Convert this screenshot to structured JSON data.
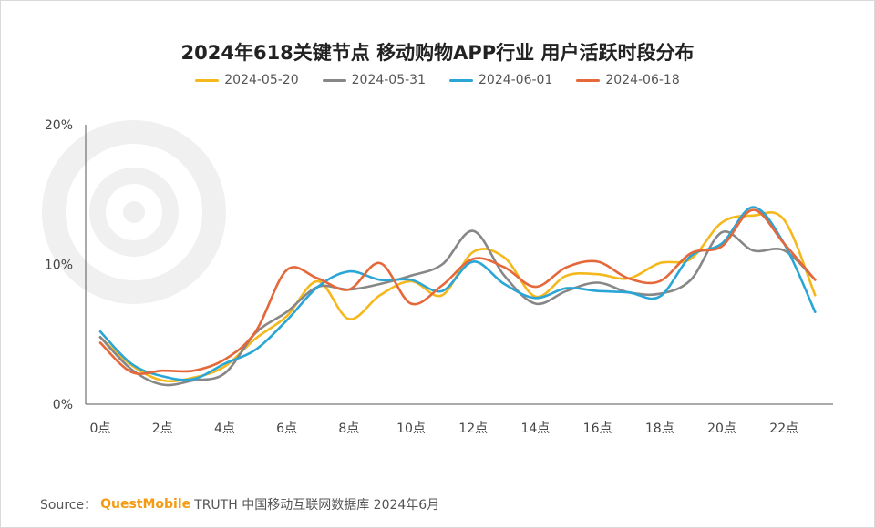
{
  "chart_data": {
    "type": "line",
    "title": "2024年618关键节点 移动购物APP行业 用户活跃时段分布",
    "x": [
      0,
      1,
      2,
      3,
      4,
      5,
      6,
      7,
      8,
      9,
      10,
      11,
      12,
      13,
      14,
      15,
      16,
      17,
      18,
      19,
      20,
      21,
      22,
      23
    ],
    "x_tick_labels": [
      "0点",
      "2点",
      "4点",
      "6点",
      "8点",
      "10点",
      "12点",
      "14点",
      "16点",
      "18点",
      "20点",
      "22点"
    ],
    "x_tick_values": [
      0,
      2,
      4,
      6,
      8,
      10,
      12,
      14,
      16,
      18,
      20,
      22
    ],
    "ylim": [
      0,
      20
    ],
    "y_ticks": [
      0,
      10,
      20
    ],
    "y_tick_labels": [
      "0%",
      "10%",
      "20%"
    ],
    "legend_position": "top-center",
    "series": [
      {
        "name": "2024-05-20",
        "color": "#f5b81c",
        "values": [
          4.8,
          2.8,
          1.7,
          1.9,
          2.7,
          4.7,
          6.3,
          8.8,
          6.1,
          7.8,
          8.8,
          7.8,
          10.9,
          10.5,
          7.7,
          9.2,
          9.3,
          9.0,
          10.1,
          10.4,
          13.0,
          13.5,
          13.2,
          7.8
        ]
      },
      {
        "name": "2024-05-31",
        "color": "#878787",
        "values": [
          4.8,
          2.5,
          1.4,
          1.7,
          2.2,
          5.1,
          6.6,
          8.4,
          8.2,
          8.6,
          9.2,
          10.0,
          12.4,
          9.2,
          7.2,
          8.1,
          8.7,
          8.0,
          7.9,
          8.9,
          12.3,
          11.0,
          11.0,
          8.9
        ]
      },
      {
        "name": "2024-06-01",
        "color": "#2aa6d6",
        "values": [
          5.2,
          2.9,
          2.0,
          1.8,
          2.9,
          3.9,
          6.0,
          8.4,
          9.5,
          8.9,
          8.9,
          8.1,
          10.2,
          8.6,
          7.6,
          8.3,
          8.1,
          8.0,
          7.7,
          10.6,
          11.5,
          14.1,
          11.5,
          6.6
        ]
      },
      {
        "name": "2024-06-18",
        "color": "#e4683a",
        "values": [
          4.4,
          2.3,
          2.4,
          2.4,
          3.2,
          5.2,
          9.6,
          9.0,
          8.2,
          10.1,
          7.2,
          8.5,
          10.4,
          9.8,
          8.4,
          9.8,
          10.2,
          9.0,
          8.8,
          10.8,
          11.3,
          13.9,
          11.5,
          8.9
        ]
      }
    ]
  },
  "footer": {
    "source_label": "Source：",
    "brand": "QuestMobile",
    "source_text": "TRUTH 中国移动互联网数据库 2024年6月"
  }
}
